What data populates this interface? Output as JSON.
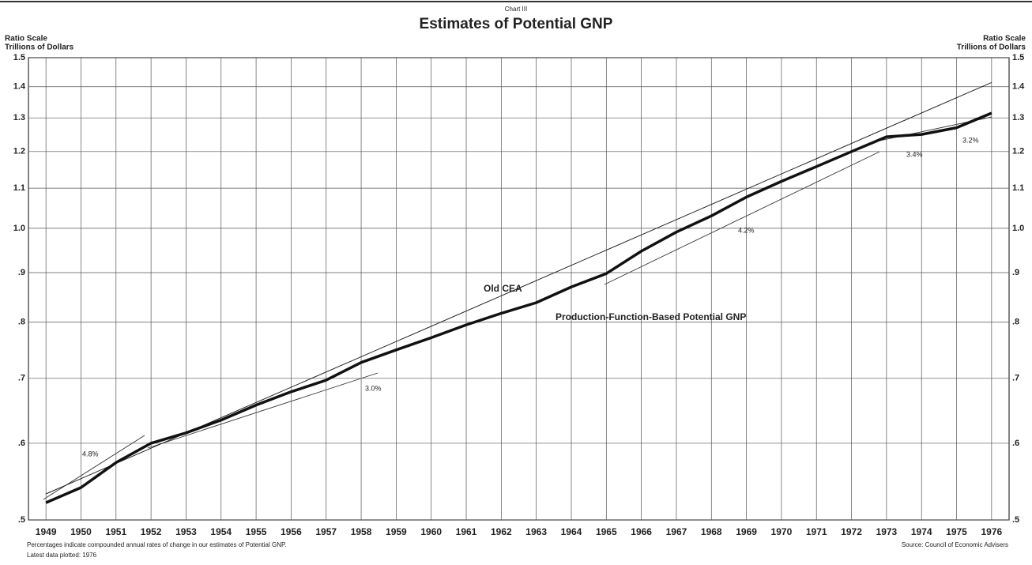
{
  "chart_data": {
    "type": "line",
    "overline": "Chart III",
    "title": "Estimates of Potential GNP",
    "ylabel": [
      "Ratio Scale",
      "Trillions of Dollars"
    ],
    "log_scale": true,
    "grid": true,
    "x": [
      1949,
      1950,
      1951,
      1952,
      1953,
      1954,
      1955,
      1956,
      1957,
      1958,
      1959,
      1960,
      1961,
      1962,
      1963,
      1964,
      1965,
      1966,
      1967,
      1968,
      1969,
      1970,
      1971,
      1972,
      1973,
      1974,
      1975,
      1976
    ],
    "xlim": [
      1948.5,
      1976.5
    ],
    "xticks": [
      1949,
      1950,
      1951,
      1952,
      1953,
      1954,
      1955,
      1956,
      1957,
      1958,
      1959,
      1960,
      1961,
      1962,
      1963,
      1964,
      1965,
      1966,
      1967,
      1968,
      1969,
      1970,
      1971,
      1972,
      1973,
      1974,
      1975,
      1976
    ],
    "ylim": [
      0.5,
      1.5
    ],
    "yticks": [
      {
        "value": 0.5,
        "label": ".5"
      },
      {
        "value": 0.6,
        "label": ".6"
      },
      {
        "value": 0.7,
        "label": ".7"
      },
      {
        "value": 0.8,
        "label": ".8"
      },
      {
        "value": 0.9,
        "label": ".9"
      },
      {
        "value": 1.0,
        "label": "1.0"
      },
      1.1,
      1.2,
      1.3,
      1.4,
      1.5
    ],
    "series": [
      {
        "name": "Old CEA",
        "color": "#222222",
        "width": 1,
        "x": [
          1949,
          1976
        ],
        "values": [
          0.532,
          1.414
        ]
      },
      {
        "name": "Production-Function-Based Potential GNP",
        "color": "#111111",
        "width": 3.5,
        "values": [
          0.521,
          0.54,
          0.573,
          0.6,
          0.615,
          0.634,
          0.657,
          0.678,
          0.697,
          0.727,
          0.749,
          0.771,
          0.795,
          0.817,
          0.838,
          0.87,
          0.898,
          0.947,
          0.991,
          1.03,
          1.077,
          1.118,
          1.158,
          1.2,
          1.243,
          1.25,
          1.27,
          1.315
        ]
      }
    ],
    "annotations": [
      "4.8%",
      "3.0%",
      "4.2%",
      "3.4%",
      "3.2%"
    ],
    "footnotes": [
      "Percentages indicate compounded annual rates of change in our estimates of Potential GNP.",
      "Latest data plotted: 1976"
    ],
    "source": "Source: Council of Economic Advisers"
  }
}
